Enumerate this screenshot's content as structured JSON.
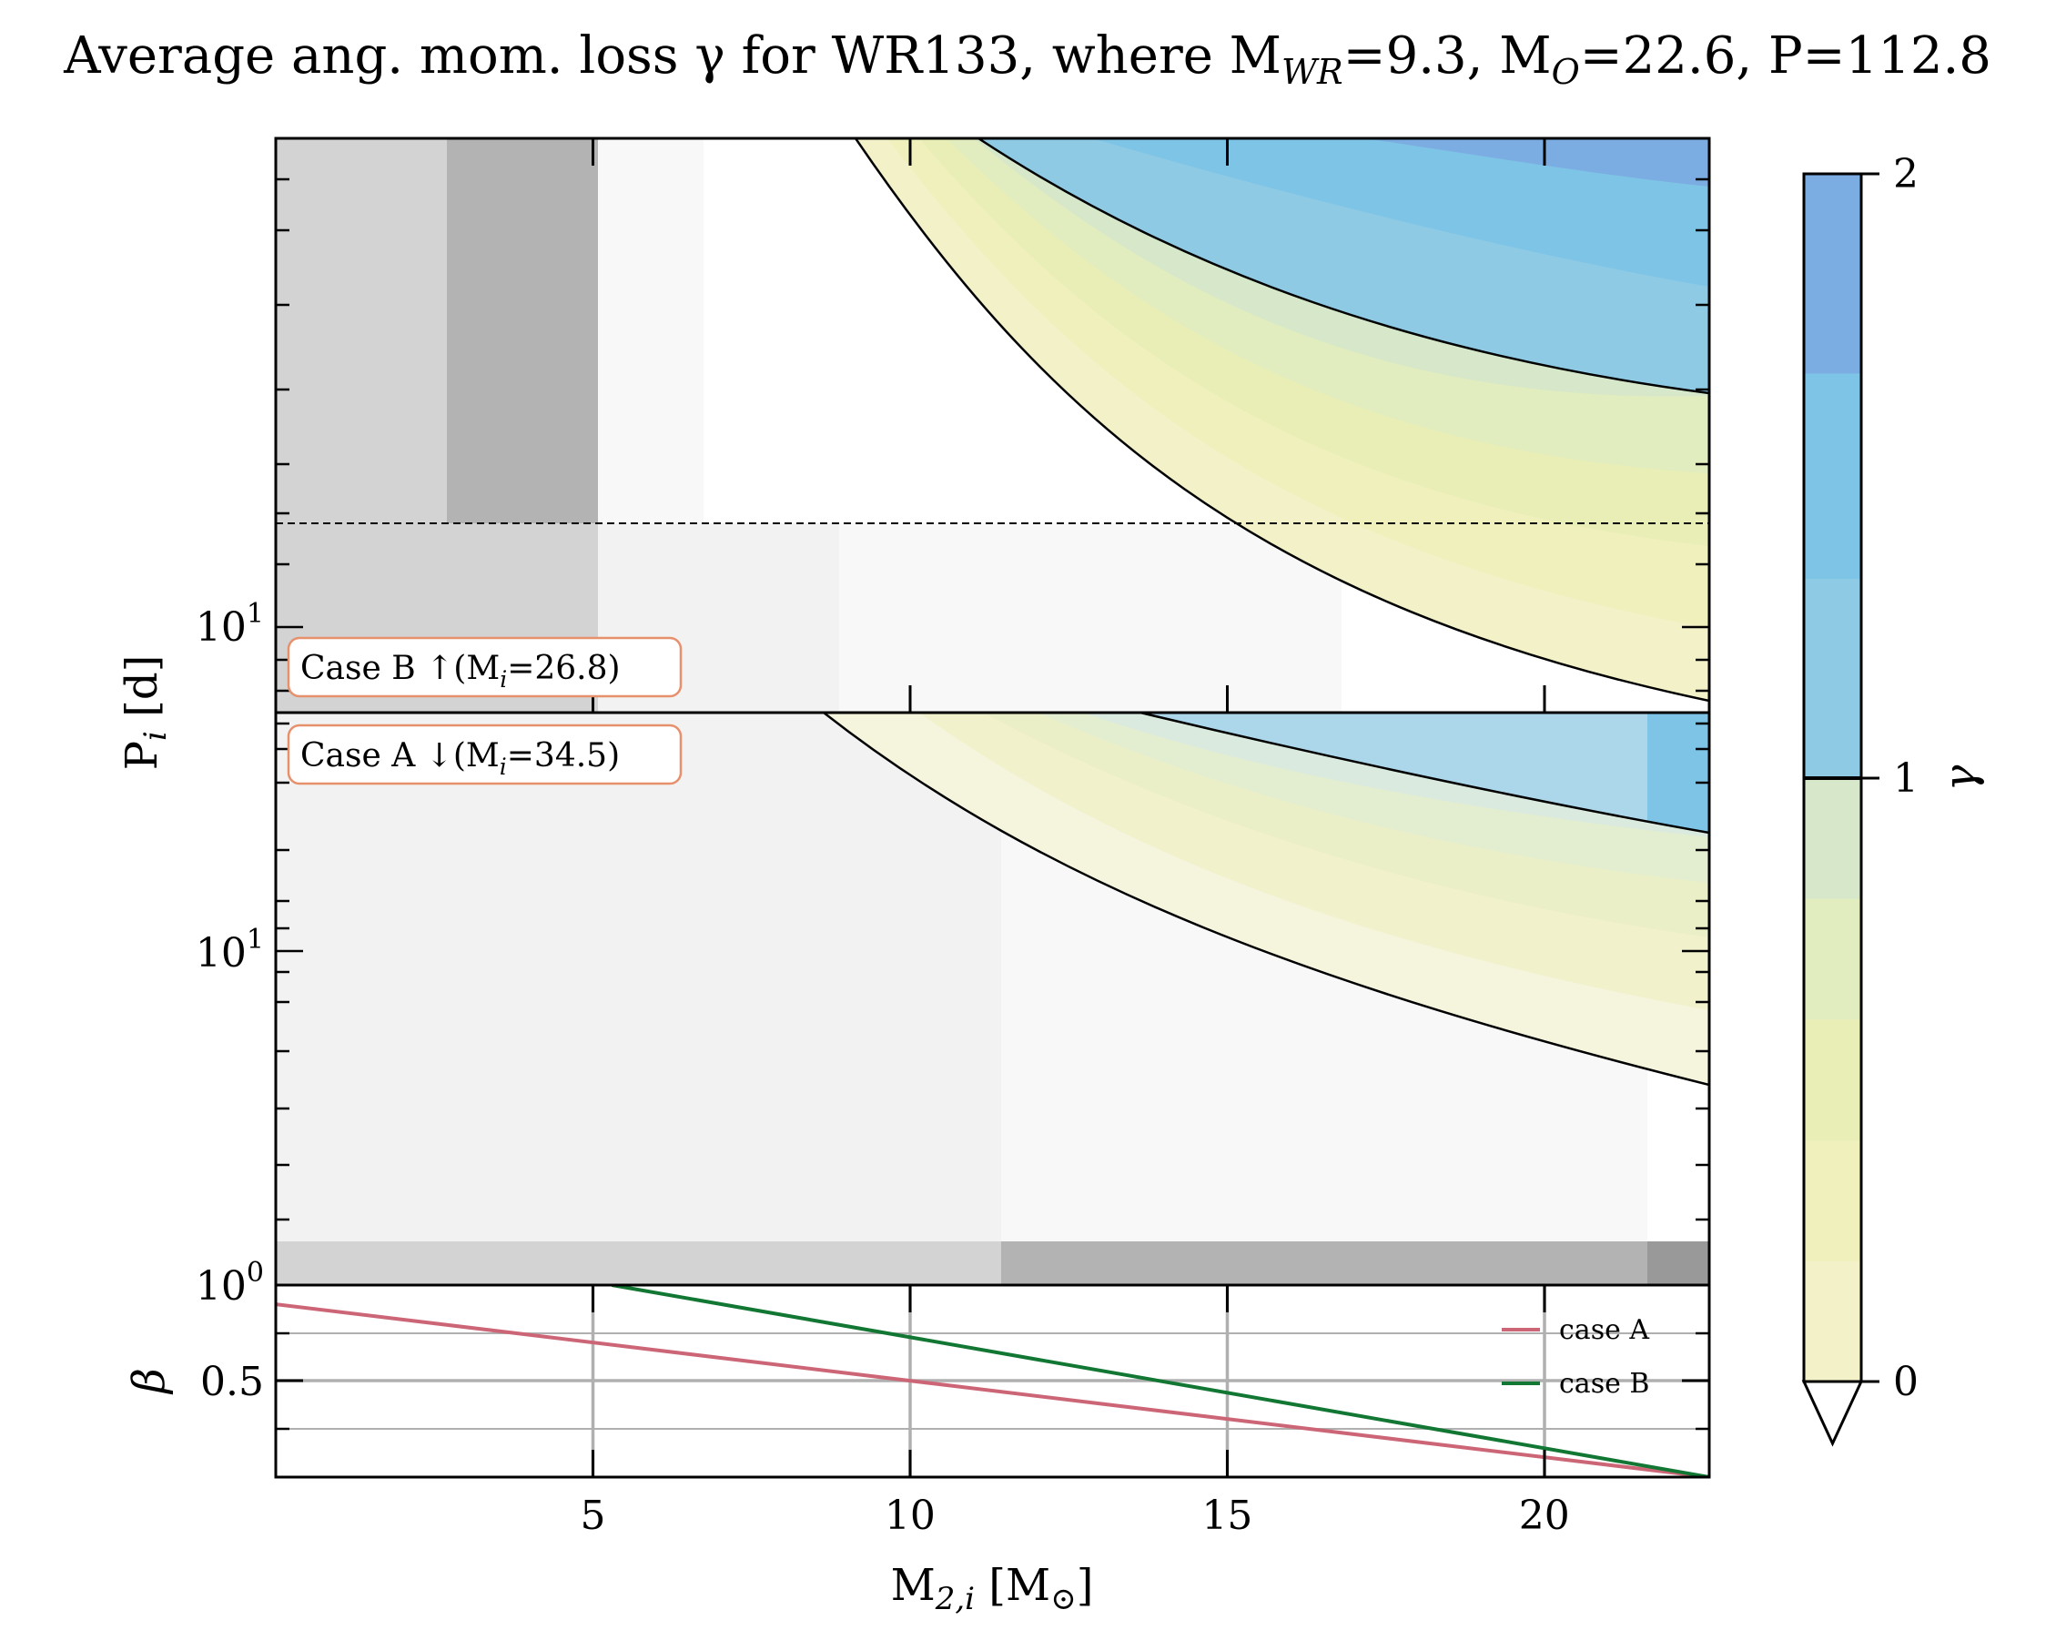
{
  "chart_data": {
    "type": "contour",
    "title": "Average ang. mom. loss γ for WR133, where M",
    "title_parts": {
      "lead": "Average ang. mom. loss γ for WR133, where M",
      "wr_sub": "WR",
      "wr_val": "=9.3, M",
      "o_sub": "O",
      "o_val": "=22.6, P=112.8"
    },
    "xlabel": "M2,i [M⊙]",
    "xlabel_parts": {
      "main": "M",
      "sub": "2,i",
      "unit": " [M",
      "sun": "⊙",
      "close": "]"
    },
    "ylabel": "Pi [d]",
    "ylabel_parts": {
      "main": "P",
      "sub": "i",
      "unit": " [d]"
    },
    "xlim": [
      0,
      22.6
    ],
    "xticks": [
      5,
      10,
      15,
      20
    ],
    "xtick_labels": [
      "5",
      "10",
      "15",
      "20"
    ],
    "yscale": "log",
    "colorbar": {
      "label": "γ",
      "range": [
        0,
        2
      ],
      "ticks": [
        0,
        1,
        2
      ],
      "tick_labels": [
        "0",
        "1",
        "2"
      ],
      "extend": "min",
      "levels": [
        {
          "from": 0.0,
          "to": 0.2,
          "color": "#f3f1c8"
        },
        {
          "from": 0.2,
          "to": 0.4,
          "color": "#eff0bc"
        },
        {
          "from": 0.4,
          "to": 0.6,
          "color": "#e9eeb6"
        },
        {
          "from": 0.6,
          "to": 0.8,
          "color": "#e1ecbf"
        },
        {
          "from": 0.8,
          "to": 1.0,
          "color": "#d6e8c9"
        },
        {
          "from": 1.0,
          "to": 1.33,
          "color": "#8ecae4"
        },
        {
          "from": 1.33,
          "to": 1.67,
          "color": "#7ec4e7"
        },
        {
          "from": 1.67,
          "to": 2.0,
          "color": "#7cade2"
        }
      ]
    },
    "panels": [
      {
        "name": "Case B",
        "annotation": {
          "lead": "Case B ↑(M",
          "sub": "i",
          "rest": "=26.8)"
        },
        "ytick_labels": [
          {
            "value": 10,
            "base": "10",
            "exp": "1"
          }
        ],
        "hline_dashed_period": 18,
        "boundary_lower_gamma0": [
          [
            9.0,
            112.8
          ],
          [
            12,
            57
          ],
          [
            15,
            30
          ],
          [
            17,
            18
          ],
          [
            19,
            11.5
          ],
          [
            22.6,
            6.6
          ]
        ],
        "boundary_gamma1": [
          [
            11.0,
            112.8
          ],
          [
            14,
            82
          ],
          [
            17,
            60
          ],
          [
            20,
            47.5
          ],
          [
            22.6,
            41
          ]
        ]
      },
      {
        "name": "Case A",
        "annotation": {
          "lead": "Case A ↓(M",
          "sub": "i",
          "rest": "=34.5)"
        },
        "ytick_labels": [
          {
            "value": 10,
            "base": "10",
            "exp": "1"
          },
          {
            "value": 1,
            "base": "10",
            "exp": "0"
          }
        ],
        "boundary_lower_gamma0": [
          [
            8.8,
            112.8
          ],
          [
            12,
            60
          ],
          [
            15,
            30
          ],
          [
            18,
            17
          ],
          [
            20,
            11
          ],
          [
            22.6,
            6.5
          ]
        ],
        "boundary_gamma1": [
          [
            13.5,
            112.8
          ],
          [
            16,
            80
          ],
          [
            19,
            55
          ],
          [
            22.6,
            37
          ]
        ]
      }
    ],
    "beta_panel": {
      "ylabel": "β",
      "ylim": [
        0,
        1
      ],
      "ytick_labels": [
        "0.5"
      ],
      "series": [
        {
          "name": "case A",
          "color": "#cc6677",
          "x": [
            0,
            22.6
          ],
          "y": [
            0.9,
            0.0
          ]
        },
        {
          "name": "case B",
          "color": "#117733",
          "x": [
            5.3,
            22.6
          ],
          "y": [
            1.0,
            0.0
          ]
        }
      ],
      "legend_position": "right"
    }
  }
}
